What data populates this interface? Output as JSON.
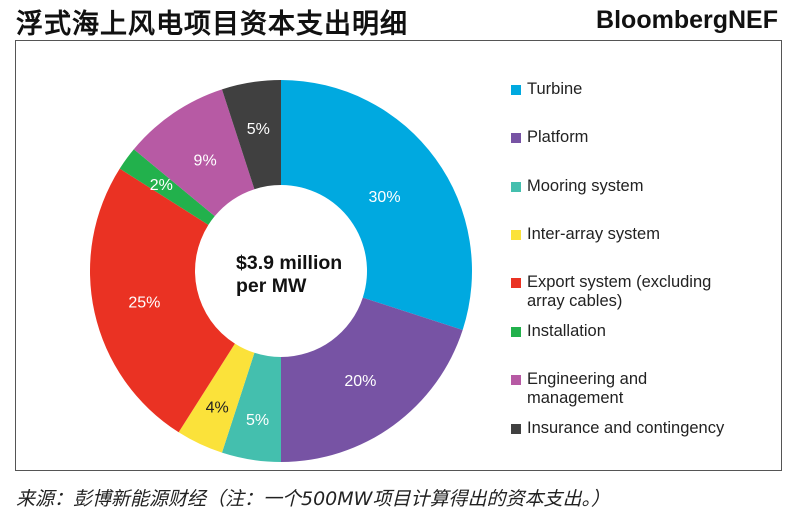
{
  "header": {
    "title": "浮式海上风电项目资本支出明细",
    "brand": "BloombergNEF"
  },
  "footer": {
    "source": "来源：彭博新能源财经（注：一个500MW项目计算得出的资本支出。）"
  },
  "chart_data": {
    "type": "pie",
    "variant": "donut",
    "title": "浮式海上风电项目资本支出明细",
    "center_label": [
      "$3.9 million",
      "per MW"
    ],
    "unit": "%",
    "legend_position": "right",
    "slices": [
      {
        "label": "Turbine",
        "legend": [
          "Turbine"
        ],
        "value": 30,
        "display": "30%",
        "color": "#00A9E0",
        "label_color": "#ffffff"
      },
      {
        "label": "Platform",
        "legend": [
          "Platform"
        ],
        "value": 20,
        "display": "20%",
        "color": "#7753A4",
        "label_color": "#ffffff"
      },
      {
        "label": "Mooring system",
        "legend": [
          "Mooring system"
        ],
        "value": 5,
        "display": "5%",
        "color": "#44BFAE",
        "label_color": "#ffffff"
      },
      {
        "label": "Inter-array system",
        "legend": [
          "Inter-array system"
        ],
        "value": 4,
        "display": "4%",
        "color": "#FBE23A",
        "label_color": "#222222"
      },
      {
        "label": "Export system (excluding array cables)",
        "legend": [
          "Export system (excluding",
          "array cables)"
        ],
        "value": 25,
        "display": "25%",
        "color": "#EA3223",
        "label_color": "#ffffff"
      },
      {
        "label": "Installation",
        "legend": [
          "Installation"
        ],
        "value": 2,
        "display": "2%",
        "color": "#22B14C",
        "label_color": "#ffffff"
      },
      {
        "label": "Engineering and management",
        "legend": [
          "Engineering and",
          "management"
        ],
        "value": 9,
        "display": "9%",
        "color": "#B75AA4",
        "label_color": "#ffffff"
      },
      {
        "label": "Insurance and contingency",
        "legend": [
          "Insurance and contingency"
        ],
        "value": 5,
        "display": "5%",
        "color": "#404040",
        "label_color": "#ffffff"
      }
    ]
  }
}
